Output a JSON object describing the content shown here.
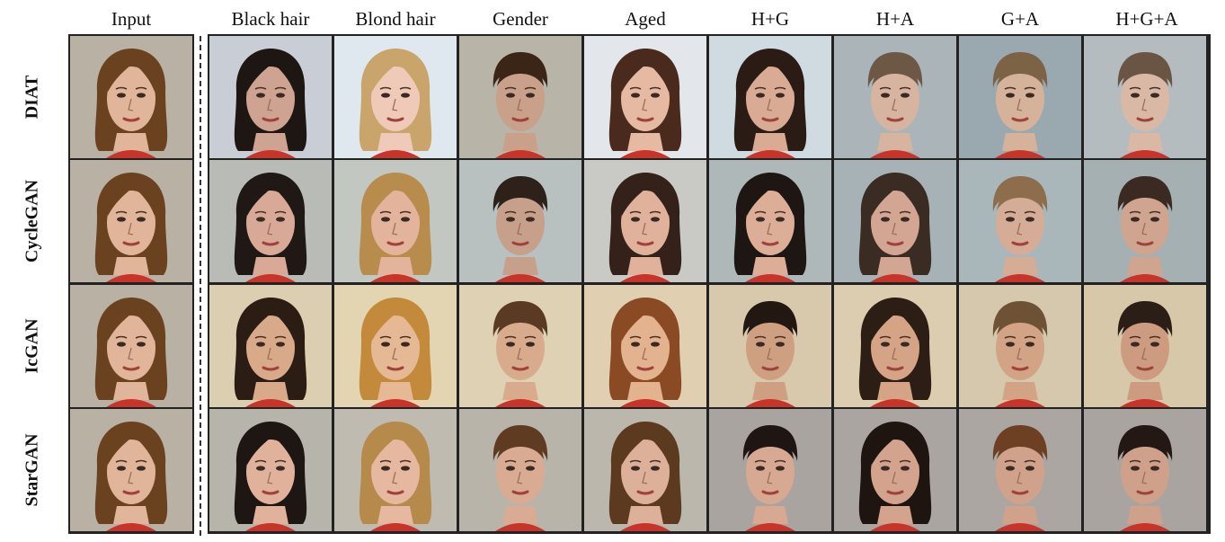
{
  "columns": {
    "input": "Input",
    "black_hair": "Black hair",
    "blond_hair": "Blond hair",
    "gender": "Gender",
    "aged": "Aged",
    "hg": "H+G",
    "ha": "H+A",
    "ga": "G+A",
    "hga": "H+G+A"
  },
  "rows": {
    "diat": "DIAT",
    "cyclegan": "CycleGAN",
    "icgan": "IcGAN",
    "stargan": "StarGAN"
  },
  "row_keys": [
    "diat",
    "cyclegan",
    "icgan",
    "stargan"
  ],
  "col_keys": [
    "input",
    "black_hair",
    "blond_hair",
    "gender",
    "aged",
    "hg",
    "ha",
    "ga",
    "hga"
  ],
  "palette": {
    "bg": {
      "diat": [
        "#b8b1a4",
        "#c9cdd6",
        "#dfe8ee",
        "#b9b4a8",
        "#e3e6ea",
        "#cfdbe0",
        "#aab4b9",
        "#9aa8b0",
        "#b4bcbf"
      ],
      "cyclegan": [
        "#b8b1a4",
        "#b9bbb7",
        "#c3c7c2",
        "#b8c0c0",
        "#c9c9c6",
        "#aeb8b8",
        "#a7b2b6",
        "#a9b6ba",
        "#a5b0b2"
      ],
      "icgan": [
        "#b8b1a4",
        "#dccfb1",
        "#e3d4b2",
        "#dfd1b4",
        "#e0d0b1",
        "#d8c9ad",
        "#dccdb0",
        "#d6c8ac",
        "#d7c8a9"
      ],
      "stargan": [
        "#b8b1a4",
        "#b7b4ac",
        "#c0bbb0",
        "#b8b4a9",
        "#bbb7ad",
        "#a9a4a0",
        "#aaa5a1",
        "#aba6a1",
        "#a9a4a0"
      ]
    },
    "hair": {
      "diat": [
        "#6b4220",
        "#1d1613",
        "#c9a56b",
        "#3b2516",
        "#4a2a1c",
        "#2a1b15",
        "#6d5845",
        "#7d6346",
        "#6a5544"
      ],
      "cyclegan": [
        "#6b4220",
        "#1f1814",
        "#b88c4c",
        "#2e2119",
        "#33211a",
        "#1d1612",
        "#3a2b23",
        "#8e6d4c",
        "#3a2a21"
      ],
      "icgan": [
        "#6b4220",
        "#2b1d14",
        "#c48a3c",
        "#5a3a22",
        "#8a4a24",
        "#221711",
        "#2c1d15",
        "#6d5236",
        "#2b1e16"
      ],
      "stargan": [
        "#6b4220",
        "#1d1612",
        "#b58a4a",
        "#5e3b21",
        "#5b3a20",
        "#1f1613",
        "#1e1511",
        "#6d4024",
        "#231814"
      ]
    },
    "skin": {
      "diat": [
        "#e1b59a",
        "#cfa391",
        "#efcab8",
        "#c9a089",
        "#e6b9a3",
        "#d9ab94",
        "#d6b4a0",
        "#d5b29a",
        "#d9b9a6"
      ],
      "cyclegan": [
        "#e1b59a",
        "#d8a996",
        "#e3b49b",
        "#c6a08b",
        "#e0b29c",
        "#dcae98",
        "#d2a692",
        "#d5ac95",
        "#cfa58f"
      ],
      "icgan": [
        "#e1b59a",
        "#d9aa8a",
        "#e6b995",
        "#d8ab8d",
        "#e3b28f",
        "#cf9f82",
        "#d5a486",
        "#d3a386",
        "#cd9c80"
      ],
      "stargan": [
        "#e1b59a",
        "#e0b29c",
        "#e6b89f",
        "#d9ab92",
        "#ddb099",
        "#d7a992",
        "#d4a38d",
        "#d0a28c",
        "#cfa18b"
      ]
    },
    "shirt": "#c8342a"
  },
  "long_hair": {
    "diat": [
      1,
      1,
      1,
      0,
      1,
      1,
      0,
      0,
      0
    ],
    "cyclegan": [
      1,
      1,
      1,
      0,
      1,
      1,
      1,
      0,
      0
    ],
    "icgan": [
      1,
      1,
      1,
      0,
      1,
      0,
      1,
      0,
      0
    ],
    "stargan": [
      1,
      1,
      1,
      0,
      1,
      0,
      1,
      0,
      0
    ]
  }
}
